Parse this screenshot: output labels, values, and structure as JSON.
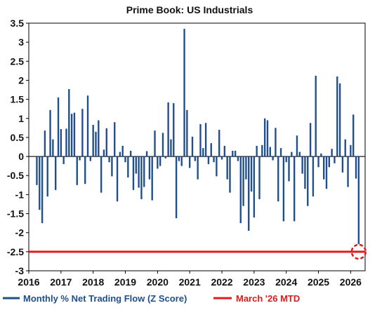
{
  "chart_data": {
    "type": "bar",
    "title": "Prime Book: US Industrials",
    "xlabel": "",
    "ylabel": "",
    "ylim": [
      -3,
      3.5
    ],
    "xlim": [
      2016,
      2026.45
    ],
    "yticks": [
      "3.5",
      "3",
      "2.5",
      "2",
      "1.5",
      "1",
      "0.5",
      "0",
      "-0.5",
      "-1",
      "-1.5",
      "-2",
      "-2.5",
      "-3"
    ],
    "xticks": [
      "2016",
      "2017",
      "2018",
      "2019",
      "2020",
      "2021",
      "2022",
      "2023",
      "2024",
      "2025",
      "2026"
    ],
    "grid": false,
    "legend_position": "bottom",
    "start": "2016-04",
    "series": [
      {
        "name": "Monthly % Net Trading Flow (Z Score)",
        "color": "#1f4e8c",
        "values": [
          -0.75,
          -1.4,
          -1.75,
          0.68,
          -1.05,
          1.22,
          0.45,
          -0.88,
          1.55,
          0.72,
          -0.2,
          0.73,
          1.77,
          1.12,
          1.15,
          -0.75,
          -0.1,
          1.25,
          -0.72,
          1.6,
          -0.12,
          0.83,
          0.65,
          0.95,
          -0.95,
          0.18,
          0.74,
          -0.15,
          -0.52,
          0.9,
          -1.18,
          0.12,
          0.28,
          -0.15,
          -0.55,
          0.15,
          -0.88,
          -0.45,
          -0.82,
          -1.12,
          -0.8,
          0.14,
          -0.6,
          -1.15,
          0.68,
          -0.32,
          -0.25,
          0.62,
          -0.05,
          1.42,
          0.45,
          1.4,
          -1.62,
          -0.12,
          -0.25,
          3.35,
          1.22,
          -0.3,
          0.52,
          -0.12,
          -0.6,
          0.85,
          0.22,
          0.88,
          -0.2,
          0.35,
          -0.15,
          -0.52,
          0.7,
          -0.08,
          0.28,
          -0.6,
          -0.95,
          0.15,
          0.15,
          -0.12,
          -1.75,
          -1.3,
          -0.6,
          -1.95,
          -0.92,
          -1.6,
          0.28,
          -1.12,
          0.3,
          1.0,
          0.95,
          0.25,
          -0.1,
          0.75,
          -1.18,
          0.22,
          -1.7,
          -0.15,
          -0.65,
          0.12,
          -1.7,
          0.55,
          0.12,
          -0.45,
          -0.85,
          -1.3,
          0.88,
          -1.05,
          2.12,
          -0.28,
          0.08,
          -0.6,
          -0.85,
          -0.28,
          0.2,
          -0.18,
          2.1,
          1.92,
          -0.42,
          0.45,
          -0.8,
          0.3,
          1.1,
          -0.58,
          -2.3
        ]
      },
      {
        "name": "March '26 MTD",
        "color": "#e01b1b",
        "value": -2.5
      }
    ]
  }
}
